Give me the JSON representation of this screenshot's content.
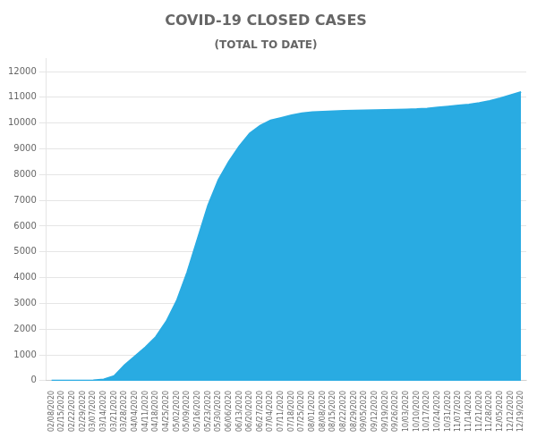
{
  "chart_data": {
    "type": "area",
    "title": "COVID-19 CLOSED CASES",
    "subtitle": "(TOTAL TO DATE)",
    "categories": [
      "02/08/2020",
      "02/15/2020",
      "02/22/2020",
      "02/29/2020",
      "03/07/2020",
      "03/14/2020",
      "03/21/2020",
      "03/28/2020",
      "04/04/2020",
      "04/11/2020",
      "04/18/2020",
      "04/25/2020",
      "05/02/2020",
      "05/09/2020",
      "05/16/2020",
      "05/23/2020",
      "05/30/2020",
      "06/06/2020",
      "06/13/2020",
      "06/20/2020",
      "06/27/2020",
      "07/04/2020",
      "07/11/2020",
      "07/18/2020",
      "07/25/2020",
      "08/01/2020",
      "08/08/2020",
      "08/15/2020",
      "08/22/2020",
      "08/29/2020",
      "09/05/2020",
      "09/12/2020",
      "09/19/2020",
      "09/26/2020",
      "10/03/2020",
      "10/10/2020",
      "10/17/2020",
      "10/24/2020",
      "10/31/2020",
      "11/07/2020",
      "11/14/2020",
      "11/21/2020",
      "11/28/2020",
      "12/05/2020",
      "12/12/2020",
      "12/19/2020"
    ],
    "values": [
      5,
      5,
      5,
      8,
      10,
      50,
      180,
      600,
      950,
      1300,
      1700,
      2300,
      3100,
      4200,
      5500,
      6800,
      7800,
      8500,
      9100,
      9600,
      9900,
      10100,
      10200,
      10300,
      10380,
      10420,
      10440,
      10460,
      10470,
      10480,
      10490,
      10500,
      10510,
      10520,
      10530,
      10540,
      10560,
      10600,
      10640,
      10680,
      10720,
      10780,
      10860,
      10960,
      11080,
      11200
    ],
    "color": "#29abe2",
    "ylim": [
      0,
      12500
    ],
    "yticks": [
      0,
      1000,
      2000,
      3000,
      4000,
      5000,
      6000,
      7000,
      8000,
      9000,
      10000,
      11000,
      12000
    ],
    "grid": "y"
  }
}
